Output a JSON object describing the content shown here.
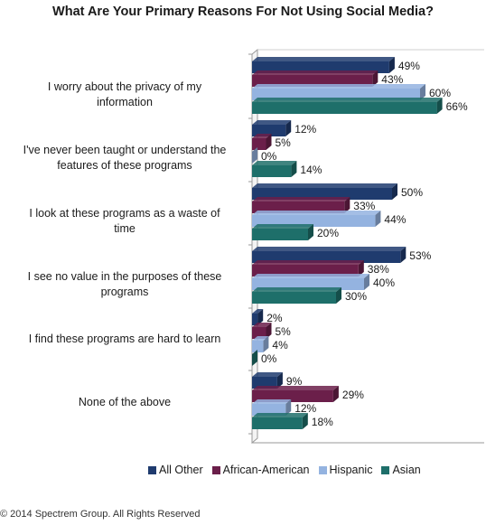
{
  "chart_data": {
    "type": "bar",
    "orientation": "horizontal",
    "title": "What Are Your Primary Reasons For Not Using Social Media?",
    "categories": [
      "I worry about the privacy of my information",
      "I've never been taught or understand the features of these programs",
      "I look at these programs as a waste of time",
      "I see no value in the purposes of these programs",
      "I find these programs are hard to learn",
      "None of the above"
    ],
    "series": [
      {
        "name": "All Other",
        "color": "#1f3b6e",
        "values": [
          49,
          12,
          50,
          53,
          2,
          9
        ]
      },
      {
        "name": "African-American",
        "color": "#6b1f4a",
        "values": [
          43,
          5,
          33,
          38,
          5,
          29
        ]
      },
      {
        "name": "Hispanic",
        "color": "#94b3e0",
        "values": [
          60,
          0,
          44,
          40,
          4,
          12
        ]
      },
      {
        "name": "Asian",
        "color": "#1e6f6a",
        "values": [
          66,
          14,
          20,
          30,
          0,
          18
        ]
      }
    ],
    "value_suffix": "%",
    "xlim": [
      0,
      100
    ],
    "legend_position": "bottom",
    "grid": false
  },
  "footer": {
    "copyright": "© 2014 Spectrem Group. All Rights Reserved"
  }
}
